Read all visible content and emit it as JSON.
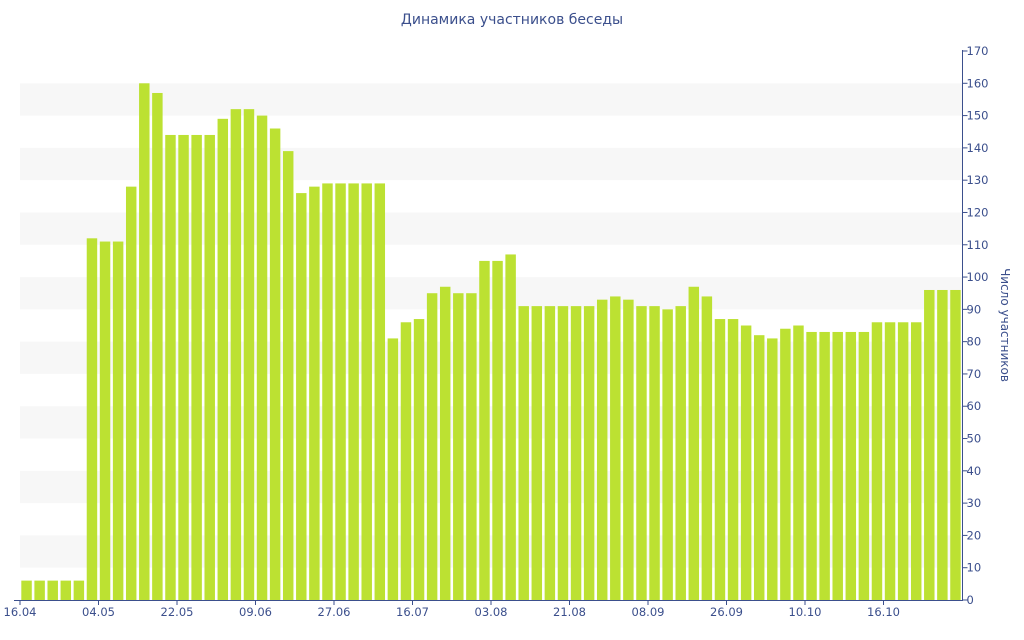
{
  "chart_data": {
    "type": "bar",
    "title": "Динамика участников беседы",
    "ylabel": "Число участников",
    "xlabel": "",
    "ylim": [
      0,
      170
    ],
    "y_ticks": [
      0,
      10,
      20,
      30,
      40,
      50,
      60,
      70,
      80,
      90,
      100,
      110,
      120,
      130,
      140,
      150,
      160,
      170
    ],
    "y_axis_side": "right",
    "x_tick_labels": [
      {
        "index": 0,
        "label": "16.04"
      },
      {
        "index": 6,
        "label": "04.05"
      },
      {
        "index": 12,
        "label": "22.05"
      },
      {
        "index": 18,
        "label": "09.06"
      },
      {
        "index": 24,
        "label": "27.06"
      },
      {
        "index": 30,
        "label": "16.07"
      },
      {
        "index": 36,
        "label": "03.08"
      },
      {
        "index": 42,
        "label": "21.08"
      },
      {
        "index": 48,
        "label": "08.09"
      },
      {
        "index": 54,
        "label": "26.09"
      },
      {
        "index": 60,
        "label": "10.10"
      },
      {
        "index": 66,
        "label": "16.10"
      }
    ],
    "values": [
      6,
      6,
      6,
      6,
      6,
      112,
      111,
      111,
      128,
      160,
      157,
      144,
      144,
      144,
      144,
      149,
      152,
      152,
      150,
      146,
      139,
      126,
      128,
      129,
      129,
      129,
      129,
      129,
      81,
      86,
      87,
      95,
      97,
      95,
      95,
      105,
      105,
      107,
      91,
      91,
      91,
      91,
      91,
      91,
      93,
      94,
      93,
      91,
      91,
      90,
      91,
      97,
      94,
      87,
      87,
      85,
      82,
      81,
      84,
      85,
      83,
      83,
      83,
      83,
      83,
      86,
      86,
      86,
      86,
      96,
      96,
      96
    ],
    "bar_color": "#bce132",
    "band_color": "#f7f7f7",
    "axis_color": "#3b4f8c",
    "grid": "alternating horizontal bands"
  }
}
